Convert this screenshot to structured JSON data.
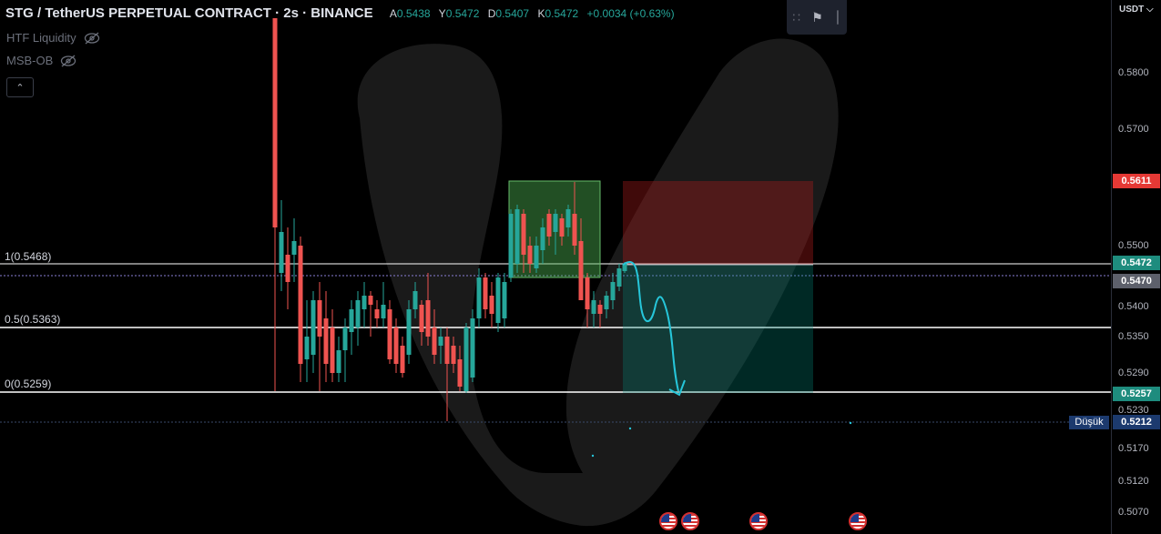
{
  "legend": {
    "title": "STG / TetherUS PERPETUAL CONTRACT · 2s · BINANCE",
    "open_key": "A",
    "open": "0.5438",
    "high_key": "Y",
    "high": "0.5472",
    "low_key": "D",
    "low": "0.5407",
    "close_key": "K",
    "close": "0.5472",
    "change": "+0.0034 (+0.63%)"
  },
  "indicators": [
    {
      "name": "HTF Liquidity",
      "icon": "eye-off-icon"
    },
    {
      "name": "MSB-OB",
      "icon": "eye-off-icon"
    }
  ],
  "collapse_icon": "chevron-up-icon",
  "currency": "USDT",
  "axis_ticks": [
    "0.5800",
    "0.5700",
    "0.5500",
    "0.5400",
    "0.5350",
    "0.5290",
    "0.5230",
    "0.5170",
    "0.5120",
    "0.5070"
  ],
  "price_labels": {
    "stop": "0.5611",
    "entry": "0.5472",
    "current": "0.5470",
    "target": "0.5257",
    "low": "0.5212"
  },
  "low_marker": "Düşük",
  "fib_levels": [
    {
      "label": "1(0.5468)"
    },
    {
      "label": "0.5(0.5363)"
    },
    {
      "label": "0(0.5259)"
    }
  ],
  "colors": {
    "up": "#26a69a",
    "down": "#ef5350",
    "stop_label": "#e53935",
    "entry_label": "#1e8c7e",
    "current_label": "#5d606b",
    "target_label": "#1e8c7e",
    "low_label": "#1c3a6e",
    "sketch": "#26c6da"
  }
}
